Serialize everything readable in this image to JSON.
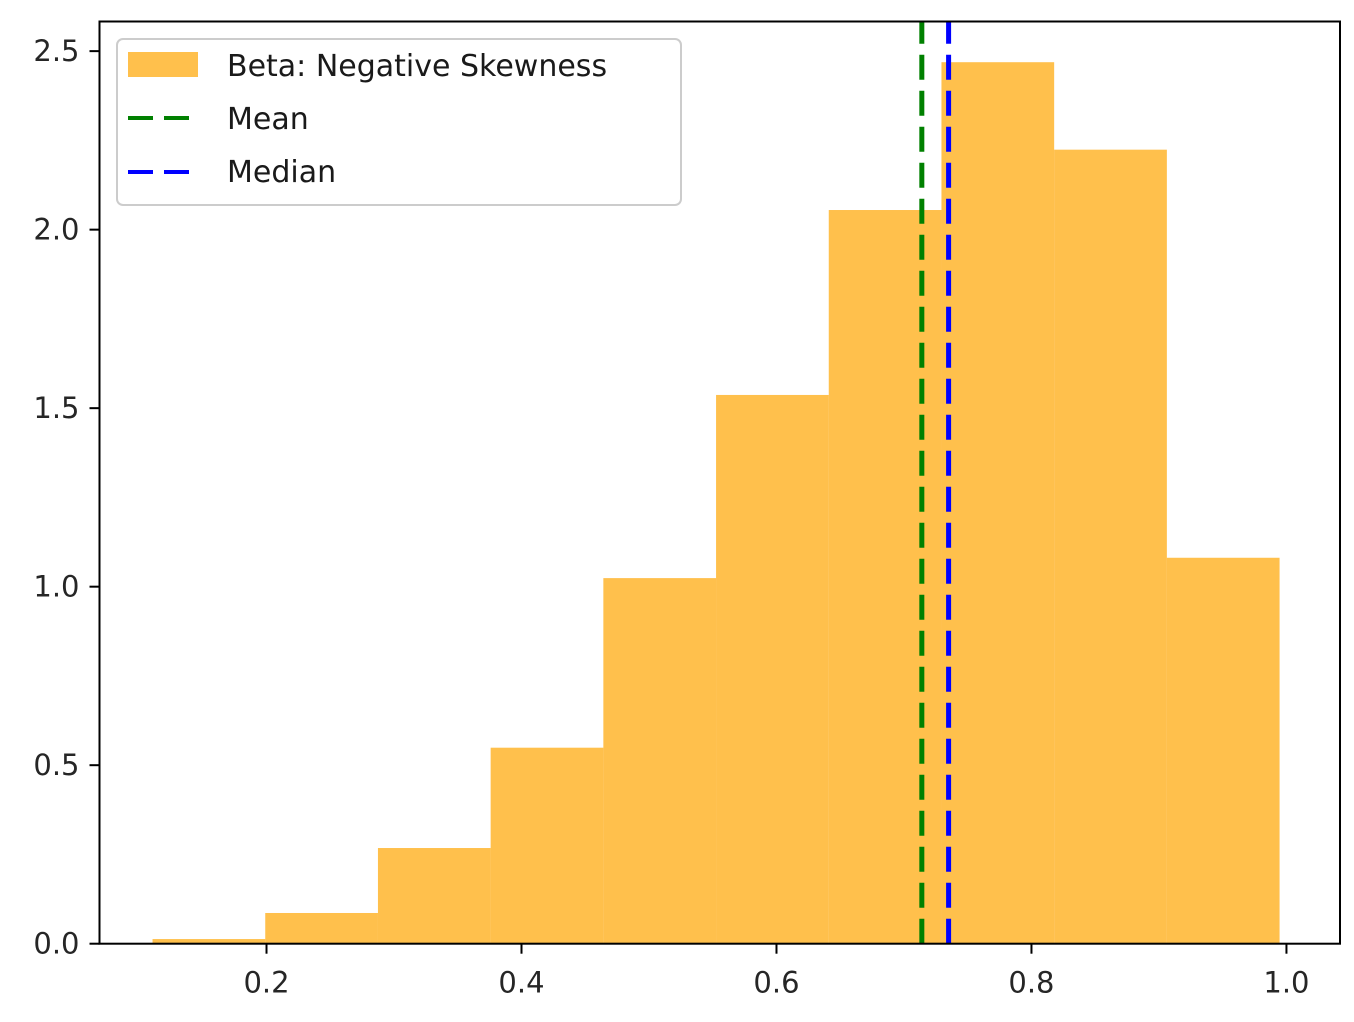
{
  "chart_data": {
    "type": "bar",
    "subtype": "histogram",
    "title": "",
    "xlabel": "",
    "ylabel": "",
    "xlim": [
      0.069,
      1.042
    ],
    "ylim": [
      0.0,
      2.583
    ],
    "grid": false,
    "bin_edges": [
      0.1106,
      0.199,
      0.2874,
      0.3758,
      0.4642,
      0.5526,
      0.641,
      0.7294,
      0.8178,
      0.9062,
      0.9946
    ],
    "series": [
      {
        "name": "Beta: Negative Skewness",
        "color": "#FFA500",
        "alpha": 0.7,
        "values": [
          0.013,
          0.086,
          0.268,
          0.549,
          1.024,
          1.537,
          2.055,
          2.469,
          2.224,
          1.081
        ]
      }
    ],
    "vlines": [
      {
        "name": "Mean",
        "x": 0.714,
        "color": "#008000",
        "style": "dashed"
      },
      {
        "name": "Median",
        "x": 0.735,
        "color": "#0000FF",
        "style": "dashed"
      }
    ],
    "xticks": [
      0.2,
      0.4,
      0.6,
      0.8,
      1.0
    ],
    "xtick_labels": [
      "0.2",
      "0.4",
      "0.6",
      "0.8",
      "1.0"
    ],
    "yticks": [
      0.0,
      0.5,
      1.0,
      1.5,
      2.0,
      2.5
    ],
    "ytick_labels": [
      "0.0",
      "0.5",
      "1.0",
      "1.5",
      "2.0",
      "2.5"
    ],
    "legend": {
      "position": "upper-left",
      "entries": [
        {
          "label": "Beta: Negative Skewness",
          "kind": "patch",
          "color": "#FFA500"
        },
        {
          "label": "Mean",
          "kind": "dashed-line",
          "color": "#008000"
        },
        {
          "label": "Median",
          "kind": "dashed-line",
          "color": "#0000FF"
        }
      ]
    }
  }
}
